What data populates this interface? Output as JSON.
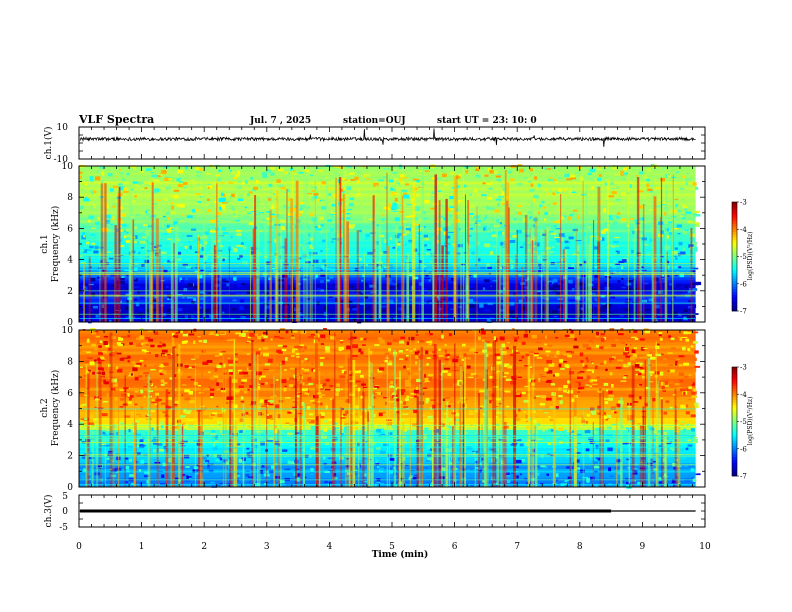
{
  "header": {
    "title": "VLF Spectra",
    "date": "Jul. 7 , 2025",
    "station": "station=OUJ",
    "start": "start UT = 23: 10: 0"
  },
  "chart_data": [
    {
      "type": "line",
      "ylabel": "ch.1(V)",
      "ylim": [
        -10,
        10
      ],
      "yticks": [
        "10",
        "-10"
      ],
      "xlim": [
        0,
        10
      ],
      "series": [
        {
          "baseline": 2.5,
          "noise_amplitude": 1
        }
      ]
    },
    {
      "type": "heatmap",
      "ylabel_top": "ch.1",
      "ylabel": "Frequency (kHz)",
      "ylim": [
        0,
        10
      ],
      "yticks": [
        "0",
        "2",
        "4",
        "6",
        "8",
        "10"
      ],
      "xlim": [
        0,
        10
      ],
      "data_extent_x": [
        0,
        9.85
      ],
      "colorbar": {
        "label": "log(PSD)(V²/Hz)",
        "range": [
          -7,
          -3
        ],
        "ticks": [
          "-3",
          "-4",
          "-5",
          "-6",
          "-7"
        ]
      },
      "profile_log_psd": [
        {
          "freq": 0.0,
          "value": -6.6
        },
        {
          "freq": 0.8,
          "value": -6.8
        },
        {
          "freq": 1.5,
          "value": -6.2
        },
        {
          "freq": 2.2,
          "value": -6.7
        },
        {
          "freq": 3.0,
          "value": -6.0
        },
        {
          "freq": 4.0,
          "value": -5.6
        },
        {
          "freq": 5.5,
          "value": -5.2
        },
        {
          "freq": 7.0,
          "value": -4.9
        },
        {
          "freq": 8.5,
          "value": -4.8
        },
        {
          "freq": 10.0,
          "value": -4.8
        }
      ]
    },
    {
      "type": "heatmap",
      "ylabel_top": "ch.2",
      "ylabel": "Frequency (kHz)",
      "ylim": [
        0,
        10
      ],
      "yticks": [
        "0",
        "2",
        "4",
        "6",
        "8",
        "10"
      ],
      "xlim": [
        0,
        10
      ],
      "data_extent_x": [
        0,
        9.85
      ],
      "colorbar": {
        "label": "log(PSD)(V²/Hz)",
        "range": [
          -7,
          -3
        ],
        "ticks": [
          "-3",
          "-4",
          "-5",
          "-6",
          "-7"
        ]
      },
      "profile_log_psd": [
        {
          "freq": 0.0,
          "value": -6.0
        },
        {
          "freq": 1.0,
          "value": -5.9
        },
        {
          "freq": 2.0,
          "value": -5.7
        },
        {
          "freq": 3.5,
          "value": -5.3
        },
        {
          "freq": 4.0,
          "value": -4.4
        },
        {
          "freq": 5.0,
          "value": -4.1
        },
        {
          "freq": 7.0,
          "value": -4.0
        },
        {
          "freq": 10.0,
          "value": -4.0
        }
      ]
    },
    {
      "type": "line",
      "ylabel": "ch.3(V)",
      "ylim": [
        -5,
        5
      ],
      "yticks": [
        "5",
        "0",
        "-5"
      ],
      "xlim": [
        0,
        10
      ],
      "xlabel": "Time (min)",
      "xticks": [
        "0",
        "1",
        "2",
        "3",
        "4",
        "5",
        "6",
        "7",
        "8",
        "9",
        "10"
      ],
      "series": [
        {
          "value": 0,
          "thick_until": 8.5,
          "end": 9.85
        }
      ]
    }
  ]
}
